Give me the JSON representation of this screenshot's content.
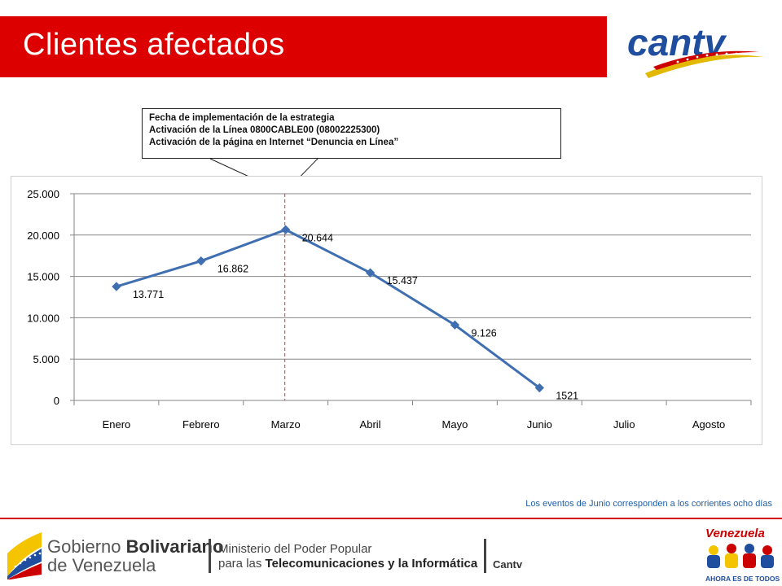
{
  "header": {
    "title": "Clientes afectados"
  },
  "logo": {
    "text": "cantv",
    "colors": {
      "text": "#1f4e9e",
      "swoosh": "#e3b800",
      "swoosh2": "#cc0000"
    }
  },
  "callout": {
    "lines": [
      "Fecha de implementación de la estrategia",
      "Activación de la Línea 0800CABLE00 (08002225300)",
      "Activación de la página en Internet “Denuncia en Línea”"
    ]
  },
  "chart_data": {
    "type": "line",
    "categories": [
      "Enero",
      "Febrero",
      "Marzo",
      "Abril",
      "Mayo",
      "Junio",
      "Julio",
      "Agosto"
    ],
    "series": [
      {
        "values": [
          13771,
          16862,
          20644,
          15437,
          9126,
          1521,
          null,
          null
        ]
      }
    ],
    "data_labels": [
      "13.771",
      "16.862",
      "20.644",
      "15.437",
      "9.126",
      "1521"
    ],
    "y_ticks": [
      "0",
      "5.000",
      "10.000",
      "15.000",
      "20.000",
      "25.000"
    ],
    "ylim": [
      0,
      25000
    ],
    "grid": true,
    "legend": "none",
    "marker_line_category": "Marzo",
    "colors": {
      "series": "#3f6fb0",
      "grid": "#868686",
      "marker_line": "#d9372b"
    }
  },
  "note": "Los eventos de Junio corresponden a los corrientes ocho días",
  "footer": {
    "gob_line1": "Gobierno ",
    "gob_line1_bold": "Bolivariano",
    "gob_line2": "de Venezuela",
    "min_line1": "Ministerio del Poder Popular",
    "min_line2": "para las ",
    "min_line2_bold": "Telecomunicaciones y la Informática",
    "cantv": "Cantv",
    "vzla_title": "Venezuela",
    "vzla_sub": "AHORA ES DE TODOS"
  }
}
